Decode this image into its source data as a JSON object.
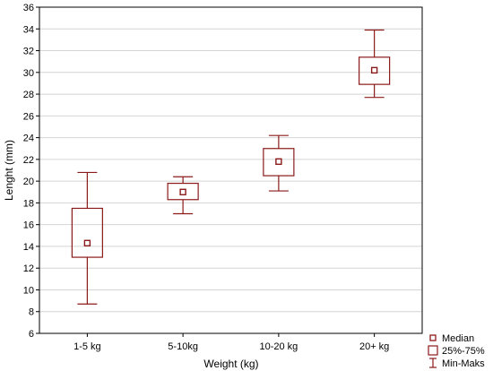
{
  "chart_data": {
    "type": "box",
    "xlabel": "Weight (kg)",
    "ylabel": "Lenght (mm)",
    "ylim": [
      6,
      36
    ],
    "yticks": [
      6,
      8,
      10,
      12,
      14,
      16,
      18,
      20,
      22,
      24,
      26,
      28,
      30,
      32,
      34,
      36
    ],
    "grid": true,
    "legend_position": "bottom-right",
    "color": "#8b1a1a",
    "categories": [
      "1-5 kg",
      "5-10kg",
      "10-20 kg",
      "20+ kg"
    ],
    "boxes": [
      {
        "min": 8.7,
        "q1": 13.0,
        "median": 14.3,
        "q3": 17.5,
        "max": 20.8
      },
      {
        "min": 17.0,
        "q1": 18.3,
        "median": 19.0,
        "q3": 19.8,
        "max": 20.4
      },
      {
        "min": 19.1,
        "q1": 20.5,
        "median": 21.8,
        "q3": 23.0,
        "max": 24.2
      },
      {
        "min": 27.7,
        "q1": 28.9,
        "median": 30.2,
        "q3": 31.4,
        "max": 33.9
      }
    ],
    "legend": [
      {
        "key": "median",
        "label": "Median"
      },
      {
        "key": "box",
        "label": "25%-75%"
      },
      {
        "key": "whisker",
        "label": "Min-Maks"
      }
    ]
  }
}
